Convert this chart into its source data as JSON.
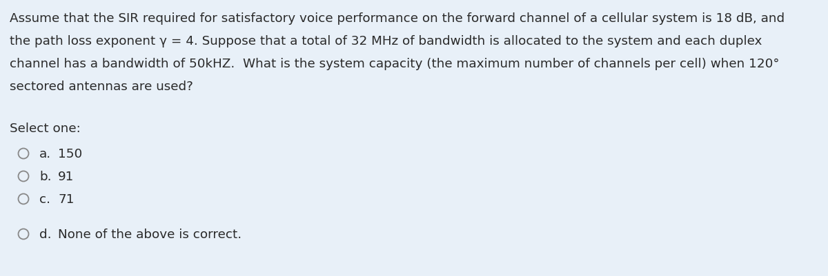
{
  "background_color": "#e8f0f8",
  "text_color": "#2a2a2a",
  "question_lines": [
    "Assume that the SIR required for satisfactory voice performance on the forward channel of a cellular system is 18 dB, and",
    "the path loss exponent γ = 4. Suppose that a total of 32 MHz of bandwidth is allocated to the system and each duplex",
    "channel has a bandwidth of 50kHZ.  What is the system capacity (the maximum number of channels per cell) when 120°",
    "sectored antennas are used?"
  ],
  "select_label": "Select one:",
  "options": [
    {
      "letter": "a.",
      "text": "150"
    },
    {
      "letter": "b.",
      "text": "91"
    },
    {
      "letter": "c.",
      "text": "71"
    },
    {
      "letter": "d.",
      "text": "None of the above is correct."
    }
  ],
  "font_size": 13.2,
  "figwidth": 12.0,
  "figheight": 4.02,
  "dpi": 100
}
